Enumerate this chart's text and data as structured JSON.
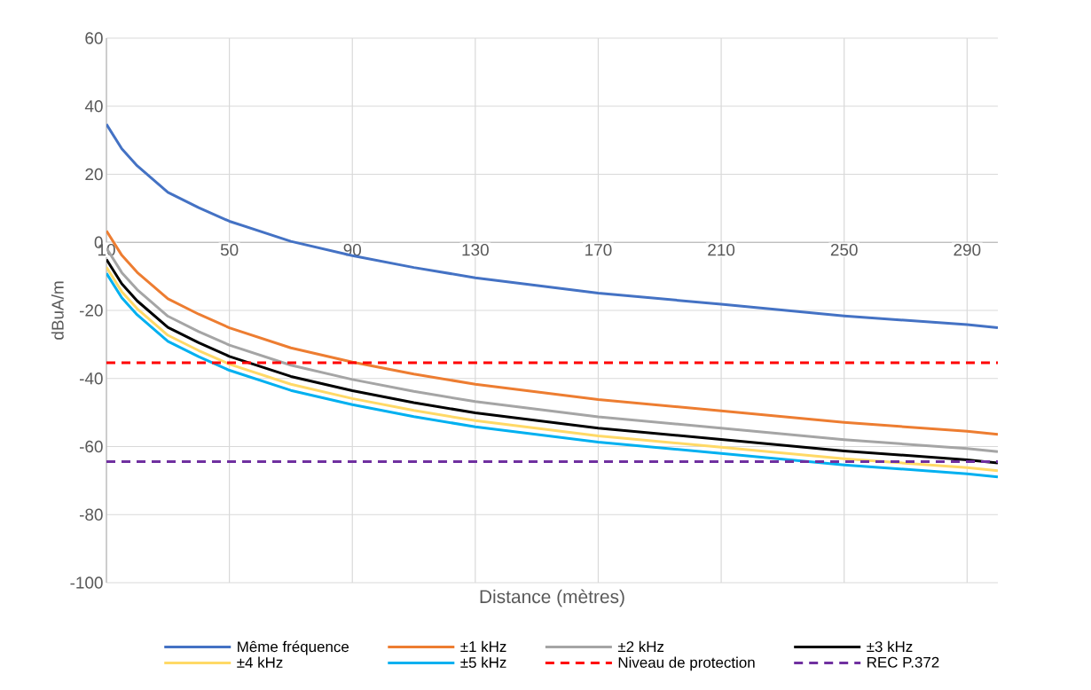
{
  "chart_data": {
    "type": "line",
    "xlabel": "Distance (mètres)",
    "ylabel": "dBuA/m",
    "x": [
      10,
      15,
      20,
      30,
      40,
      50,
      70,
      90,
      110,
      130,
      170,
      210,
      250,
      290,
      300
    ],
    "xlim": [
      10,
      300
    ],
    "xticks": [
      10,
      50,
      90,
      130,
      170,
      210,
      250,
      290
    ],
    "ylim": [
      -100,
      60
    ],
    "yticks": [
      -100,
      -80,
      -60,
      -40,
      -20,
      0,
      20,
      40,
      60
    ],
    "grid": true,
    "legend": "bottom",
    "series": [
      {
        "name": "Même fréquence",
        "color": "#4472c4",
        "values": [
          34.7,
          27.5,
          22.5,
          14.7,
          10.2,
          6.2,
          0.3,
          -3.9,
          -7.4,
          -10.4,
          -14.9,
          -18.2,
          -21.6,
          -24.2,
          -25.1
        ]
      },
      {
        "name": "±1 kHz",
        "color": "#ed7d31",
        "values": [
          3.4,
          -3.8,
          -8.8,
          -16.6,
          -21.1,
          -25.1,
          -31.0,
          -35.2,
          -38.7,
          -41.7,
          -46.2,
          -49.5,
          -52.9,
          -55.5,
          -56.4
        ]
      },
      {
        "name": "±2 kHz",
        "color": "#a5a5a5",
        "values": [
          -1.7,
          -8.9,
          -13.9,
          -21.7,
          -26.2,
          -30.2,
          -36.1,
          -40.3,
          -43.8,
          -46.8,
          -51.3,
          -54.6,
          -58.0,
          -60.6,
          -61.5
        ]
      },
      {
        "name": "±3 kHz",
        "color": "#000000",
        "values": [
          -5.0,
          -12.2,
          -17.2,
          -25.0,
          -29.5,
          -33.5,
          -39.4,
          -43.6,
          -47.1,
          -50.1,
          -54.6,
          -57.9,
          -61.3,
          -63.9,
          -64.8
        ]
      },
      {
        "name": "±4 kHz",
        "color": "#ffd966",
        "values": [
          -7.3,
          -14.5,
          -19.5,
          -27.3,
          -31.8,
          -35.8,
          -41.7,
          -45.9,
          -49.4,
          -52.4,
          -56.9,
          -60.2,
          -63.6,
          -66.2,
          -67.1
        ]
      },
      {
        "name": "±5 kHz",
        "color": "#00b0f0",
        "values": [
          -9.1,
          -16.3,
          -21.3,
          -29.1,
          -33.6,
          -37.6,
          -43.5,
          -47.7,
          -51.2,
          -54.2,
          -58.7,
          -62.0,
          -65.4,
          -68.0,
          -68.9
        ]
      },
      {
        "name": "Niveau de protection",
        "color": "#ff0000",
        "line_style": "dashed",
        "values": [
          -35.4,
          -35.4,
          -35.4,
          -35.4,
          -35.4,
          -35.4,
          -35.4,
          -35.4,
          -35.4,
          -35.4,
          -35.4,
          -35.4,
          -35.4,
          -35.4,
          -35.4
        ]
      },
      {
        "name": "REC P.372",
        "color": "#7030a0",
        "line_style": "dashed",
        "values": [
          -64.4,
          -64.4,
          -64.4,
          -64.4,
          -64.4,
          -64.4,
          -64.4,
          -64.4,
          -64.4,
          -64.4,
          -64.4,
          -64.4,
          -64.4,
          -64.4,
          -64.4
        ]
      }
    ]
  }
}
